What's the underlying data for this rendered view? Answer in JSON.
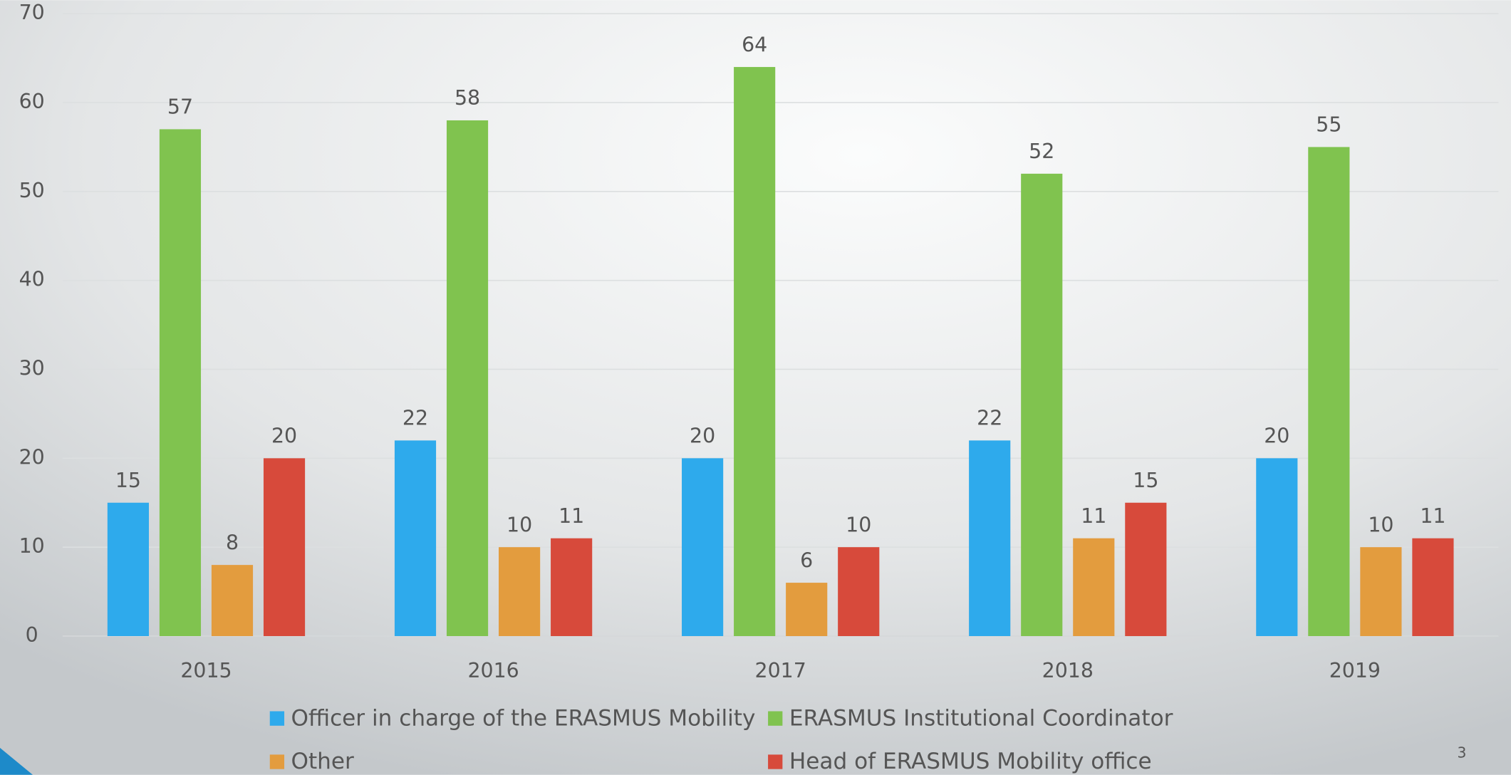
{
  "chart_data": {
    "type": "bar",
    "categories": [
      "2015",
      "2016",
      "2017",
      "2018",
      "2019"
    ],
    "series": [
      {
        "name": "Officer in charge of the ERASMUS Mobility",
        "color": "#2eaaec",
        "values": [
          15,
          22,
          20,
          22,
          20
        ]
      },
      {
        "name": "ERASMUS Institutional Coordinator",
        "color": "#80c34f",
        "values": [
          57,
          58,
          64,
          52,
          55
        ]
      },
      {
        "name": "Other",
        "color": "#e39c3e",
        "values": [
          8,
          10,
          6,
          11,
          10
        ]
      },
      {
        "name": "Head of ERASMUS Mobility office",
        "color": "#d74a3b",
        "values": [
          20,
          11,
          10,
          15,
          11
        ]
      }
    ],
    "ylim": [
      0,
      70
    ],
    "yticks": [
      0,
      10,
      20,
      30,
      40,
      50,
      60,
      70
    ],
    "grid": true,
    "legend": "bottom"
  },
  "page_number": "3"
}
